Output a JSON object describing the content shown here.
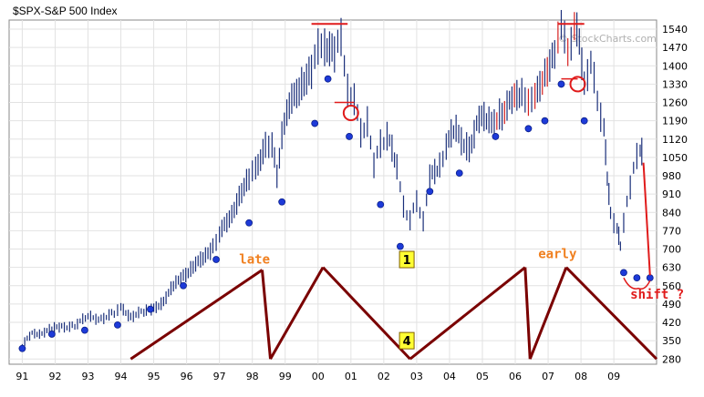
{
  "chart_title": "$SPX-S&P 500 Index",
  "watermark": "© StockCharts.com",
  "chart_data": {
    "type": "line",
    "title": "$SPX-S&P 500 Index",
    "x_ticks": [
      "91",
      "92",
      "93",
      "94",
      "95",
      "96",
      "97",
      "98",
      "99",
      "00",
      "01",
      "02",
      "03",
      "04",
      "05",
      "06",
      "07",
      "08",
      "09"
    ],
    "y_ticks": [
      280,
      350,
      420,
      490,
      560,
      630,
      700,
      770,
      840,
      910,
      980,
      1050,
      1120,
      1190,
      1260,
      1330,
      1400,
      1470,
      1540
    ],
    "ylim": [
      260,
      1575
    ],
    "xlim": [
      1990.6,
      2010.3
    ],
    "grid": true,
    "series": [
      {
        "values": [
          [
            1991.0,
            330
          ],
          [
            1991.3,
            375
          ],
          [
            1991.6,
            385
          ],
          [
            1991.9,
            390
          ],
          [
            1992.2,
            405
          ],
          [
            1992.6,
            410
          ],
          [
            1993.0,
            435
          ],
          [
            1993.4,
            440
          ],
          [
            1993.8,
            455
          ],
          [
            1994.0,
            470
          ],
          [
            1994.3,
            450
          ],
          [
            1994.7,
            455
          ],
          [
            1995.0,
            470
          ],
          [
            1995.3,
            510
          ],
          [
            1995.6,
            550
          ],
          [
            1995.9,
            600
          ],
          [
            1996.2,
            640
          ],
          [
            1996.5,
            650
          ],
          [
            1996.8,
            720
          ],
          [
            1997.0,
            760
          ],
          [
            1997.3,
            800
          ],
          [
            1997.6,
            920
          ],
          [
            1997.9,
            960
          ],
          [
            1998.1,
            1000
          ],
          [
            1998.4,
            1120
          ],
          [
            1998.6,
            1080
          ],
          [
            1998.75,
            980
          ],
          [
            1998.9,
            1150
          ],
          [
            1999.2,
            1250
          ],
          [
            1999.5,
            1350
          ],
          [
            1999.8,
            1380
          ],
          [
            2000.0,
            1450
          ],
          [
            2000.2,
            1500
          ],
          [
            2000.5,
            1430
          ],
          [
            2000.7,
            1500
          ],
          [
            2000.9,
            1330
          ],
          [
            2001.1,
            1250
          ],
          [
            2001.3,
            1150
          ],
          [
            2001.5,
            1200
          ],
          [
            2001.7,
            1000
          ],
          [
            2001.9,
            1120
          ],
          [
            2002.1,
            1130
          ],
          [
            2002.4,
            1000
          ],
          [
            2002.6,
            880
          ],
          [
            2002.8,
            800
          ],
          [
            2003.0,
            880
          ],
          [
            2003.2,
            820
          ],
          [
            2003.4,
            960
          ],
          [
            2003.7,
            1030
          ],
          [
            2003.9,
            1100
          ],
          [
            2004.2,
            1140
          ],
          [
            2004.6,
            1100
          ],
          [
            2004.9,
            1190
          ],
          [
            2005.2,
            1180
          ],
          [
            2005.6,
            1230
          ],
          [
            2005.9,
            1250
          ],
          [
            2006.2,
            1300
          ],
          [
            2006.4,
            1280
          ],
          [
            2006.6,
            1260
          ],
          [
            2006.9,
            1390
          ],
          [
            2007.2,
            1450
          ],
          [
            2007.4,
            1530
          ],
          [
            2007.6,
            1480
          ],
          [
            2007.8,
            1540
          ],
          [
            2007.95,
            1480
          ],
          [
            2008.1,
            1360
          ],
          [
            2008.3,
            1390
          ],
          [
            2008.5,
            1270
          ],
          [
            2008.7,
            1180
          ],
          [
            2008.8,
            950
          ],
          [
            2008.9,
            850
          ],
          [
            2009.1,
            780
          ],
          [
            2009.2,
            700
          ],
          [
            2009.4,
            900
          ],
          [
            2009.6,
            1000
          ],
          [
            2009.8,
            1070
          ],
          [
            2009.9,
            1100
          ]
        ]
      }
    ],
    "blue_dots": [
      [
        1991.0,
        320
      ],
      [
        1991.9,
        375
      ],
      [
        1992.9,
        390
      ],
      [
        1993.9,
        410
      ],
      [
        1994.9,
        470
      ],
      [
        1995.9,
        560
      ],
      [
        1996.9,
        660
      ],
      [
        1997.9,
        800
      ],
      [
        1998.9,
        880
      ],
      [
        1999.9,
        1180
      ],
      [
        2000.3,
        1350
      ],
      [
        2000.95,
        1130
      ],
      [
        2001.9,
        870
      ],
      [
        2002.5,
        710
      ],
      [
        2003.4,
        920
      ],
      [
        2004.3,
        990
      ],
      [
        2005.4,
        1130
      ],
      [
        2006.4,
        1160
      ],
      [
        2006.9,
        1190
      ],
      [
        2007.4,
        1330
      ],
      [
        2008.1,
        1190
      ],
      [
        2009.3,
        610
      ],
      [
        2009.7,
        590
      ],
      [
        2010.1,
        590
      ]
    ],
    "red_trend_line": [
      [
        2009.9,
        1030
      ],
      [
        2010.1,
        600
      ]
    ],
    "annotations": {
      "late": "late",
      "early": "early",
      "shift": "shift ?",
      "box1": "1",
      "box4": "4"
    }
  }
}
